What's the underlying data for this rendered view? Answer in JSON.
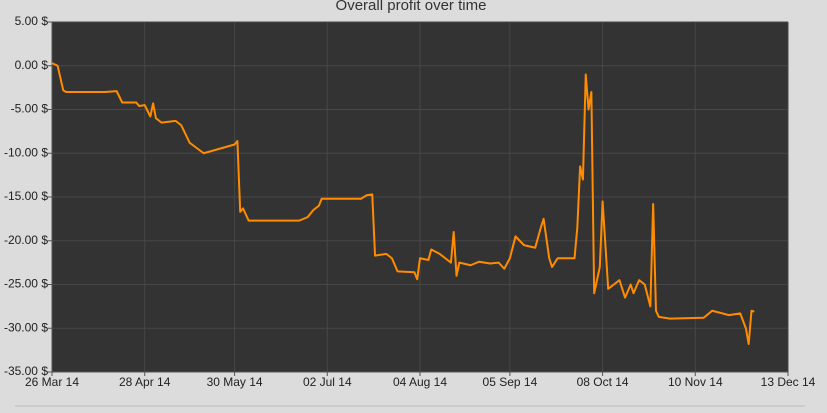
{
  "chart_data": {
    "type": "line",
    "title": "Overall profit over time",
    "x": [
      "2014-03-26",
      "2014-03-28",
      "2014-03-30",
      "2014-03-31",
      "2014-04-14",
      "2014-04-18",
      "2014-04-20",
      "2014-04-25",
      "2014-04-26",
      "2014-04-28",
      "2014-04-30",
      "2014-05-01",
      "2014-05-02",
      "2014-05-04",
      "2014-05-09",
      "2014-05-11",
      "2014-05-14",
      "2014-05-19",
      "2014-05-30",
      "2014-05-31",
      "2014-06-01",
      "2014-06-02",
      "2014-06-04",
      "2014-06-22",
      "2014-06-25",
      "2014-06-27",
      "2014-06-29",
      "2014-06-30",
      "2014-07-14",
      "2014-07-16",
      "2014-07-18",
      "2014-07-19",
      "2014-07-23",
      "2014-07-25",
      "2014-07-27",
      "2014-08-02",
      "2014-08-03",
      "2014-08-04",
      "2014-08-07",
      "2014-08-08",
      "2014-08-11",
      "2014-08-15",
      "2014-08-16",
      "2014-08-17",
      "2014-08-18",
      "2014-08-22",
      "2014-08-25",
      "2014-08-29",
      "2014-09-01",
      "2014-09-03",
      "2014-09-05",
      "2014-09-07",
      "2014-09-10",
      "2014-09-14",
      "2014-09-16",
      "2014-09-17",
      "2014-09-19",
      "2014-09-20",
      "2014-09-22",
      "2014-09-28",
      "2014-09-29",
      "2014-09-30",
      "2014-10-01",
      "2014-10-02",
      "2014-10-03",
      "2014-10-04",
      "2014-10-05",
      "2014-10-07",
      "2014-10-08",
      "2014-10-10",
      "2014-10-12",
      "2014-10-14",
      "2014-10-16",
      "2014-10-18",
      "2014-10-19",
      "2014-10-21",
      "2014-10-23",
      "2014-10-25",
      "2014-10-26",
      "2014-10-27",
      "2014-10-28",
      "2014-11-01",
      "2014-11-13",
      "2014-11-16",
      "2014-11-22",
      "2014-11-26",
      "2014-11-28",
      "2014-11-29",
      "2014-11-30",
      "2014-12-01"
    ],
    "series": [
      {
        "color": "#ff8c00",
        "values": [
          0.3,
          0,
          -2.8,
          -3.0,
          -3.0,
          -2.9,
          -4.2,
          -4.2,
          -4.6,
          -4.5,
          -5.8,
          -4.3,
          -6.0,
          -6.5,
          -6.3,
          -6.8,
          -8.8,
          -10.0,
          -9.0,
          -8.6,
          -16.7,
          -16.3,
          -17.7,
          -17.7,
          -17.3,
          -16.5,
          -16.0,
          -15.2,
          -15.2,
          -14.8,
          -14.7,
          -21.7,
          -21.5,
          -22.0,
          -23.5,
          -23.6,
          -24.4,
          -22.0,
          -22.2,
          -21.0,
          -21.5,
          -22.5,
          -19.0,
          -24.0,
          -22.5,
          -22.8,
          -22.4,
          -22.6,
          -22.5,
          -23.2,
          -22.0,
          -19.5,
          -20.5,
          -20.8,
          -18.5,
          -17.5,
          -22.0,
          -23.0,
          -22.0,
          -22.0,
          -18.5,
          -11.5,
          -13.0,
          -1.0,
          -5.0,
          -3.0,
          -26.0,
          -23.0,
          -15.5,
          -25.5,
          -25.0,
          -24.5,
          -26.5,
          -25.0,
          -26.0,
          -24.5,
          -25.0,
          -27.5,
          -15.8,
          -28.0,
          -28.7,
          -28.9,
          -28.8,
          -28.0,
          -28.5,
          -28.3,
          -30.0,
          -31.8,
          -28.0,
          -28.1
        ]
      }
    ],
    "xlim": [
      "2014-03-26",
      "2014-12-13"
    ],
    "xticks": [
      {
        "value": "2014-03-26",
        "label": "26 Mar 14"
      },
      {
        "value": "2014-04-28",
        "label": "28 Apr 14"
      },
      {
        "value": "2014-05-30",
        "label": "30 May 14"
      },
      {
        "value": "2014-07-02",
        "label": "02 Jul 14"
      },
      {
        "value": "2014-08-04",
        "label": "04 Aug 14"
      },
      {
        "value": "2014-09-05",
        "label": "05 Sep 14"
      },
      {
        "value": "2014-10-08",
        "label": "08 Oct 14"
      },
      {
        "value": "2014-11-10",
        "label": "10 Nov 14"
      },
      {
        "value": "2014-12-13",
        "label": "13 Dec 14"
      }
    ],
    "ylim": [
      -35,
      5
    ],
    "yticks": [
      {
        "value": 5,
        "label": "5.00 $"
      },
      {
        "value": 0,
        "label": "0.00 $"
      },
      {
        "value": -5,
        "label": "-5.00 $"
      },
      {
        "value": -10,
        "label": "-10.00 $"
      },
      {
        "value": -15,
        "label": "-15.00 $"
      },
      {
        "value": -20,
        "label": "-20.00 $"
      },
      {
        "value": -25,
        "label": "-25.00 $"
      },
      {
        "value": -30,
        "label": "-30.00 $"
      },
      {
        "value": -35,
        "label": "-35.00 $"
      }
    ],
    "grid": true
  }
}
